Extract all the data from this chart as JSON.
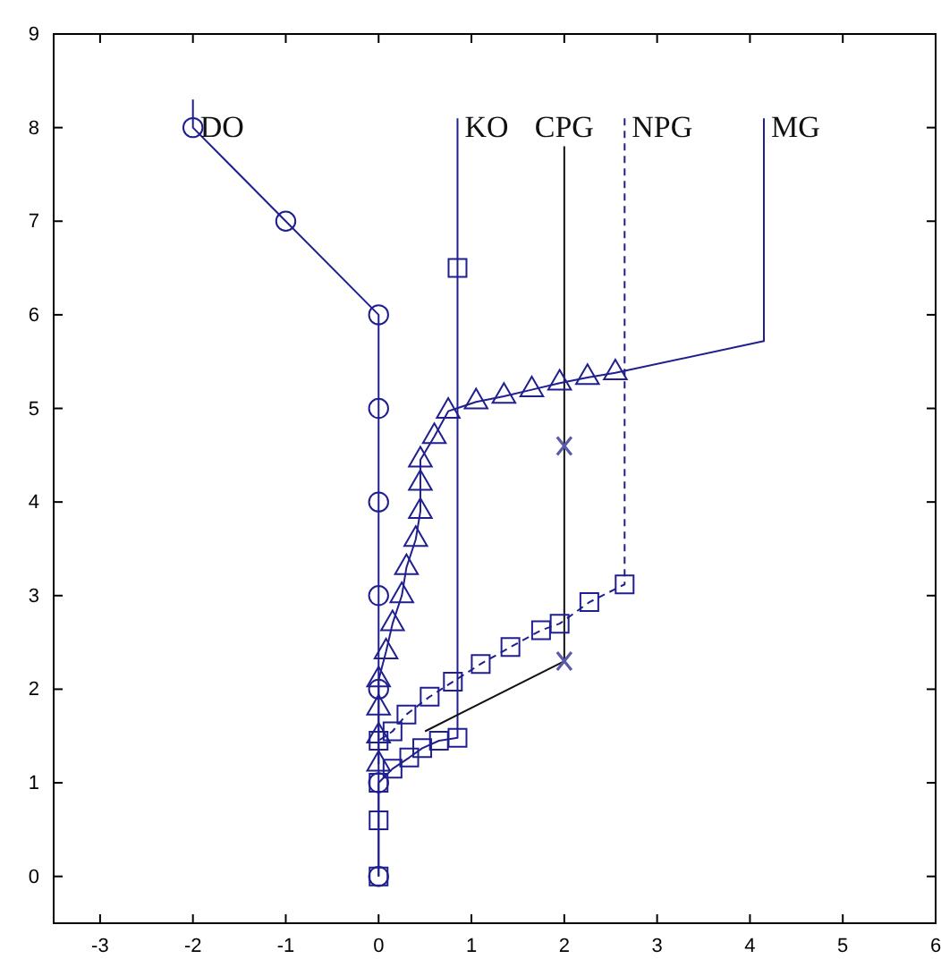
{
  "chart_data": {
    "type": "line",
    "xlim": [
      -3.5,
      6
    ],
    "xticks": [
      -3,
      -2,
      -1,
      0,
      1,
      2,
      3,
      4,
      5,
      6
    ],
    "ylim": [
      -0.5,
      9
    ],
    "yticks": [
      0,
      1,
      2,
      3,
      4,
      5,
      6,
      7,
      8,
      9
    ],
    "grid": false,
    "legend": false,
    "series": [
      {
        "name": "DO",
        "color": "#1f1f8f",
        "marker": "none",
        "x": [
          -2,
          -2,
          -1,
          0,
          0,
          0,
          0,
          0,
          0,
          0
        ],
        "values": [
          8.3,
          8,
          7,
          6,
          5,
          4,
          3,
          2,
          1,
          0
        ]
      },
      {
        "color": "#1f1f8f",
        "type": "scatter",
        "marker": "circle",
        "x": [
          -2,
          -1,
          0,
          0,
          0,
          0,
          0,
          0,
          0
        ],
        "values": [
          8,
          7,
          6,
          5,
          4,
          3,
          2,
          1,
          0
        ]
      },
      {
        "name": "KO",
        "color": "#1f1f8f",
        "marker": "none",
        "x": [
          0.85,
          0.85,
          0.85,
          0.65,
          0.47,
          0.33,
          0.15,
          0,
          0,
          0
        ],
        "values": [
          8.1,
          6.5,
          1.48,
          1.45,
          1.37,
          1.27,
          1.15,
          1,
          0.6,
          0
        ]
      },
      {
        "color": "#1f1f8f",
        "type": "scatter",
        "marker": "square",
        "x": [
          0.85,
          0.85,
          0.65,
          0.47,
          0.33,
          0.15,
          0,
          0,
          0
        ],
        "values": [
          6.5,
          1.48,
          1.45,
          1.37,
          1.27,
          1.15,
          1,
          0.6,
          0
        ]
      },
      {
        "name": "CPG",
        "color": "#111111",
        "marker": "none",
        "x": [
          2,
          2,
          2,
          0.5
        ],
        "values": [
          7.8,
          4.6,
          2.3,
          1.55
        ]
      },
      {
        "color": "#5a5aa8",
        "type": "scatter",
        "marker": "cross",
        "x": [
          2,
          2
        ],
        "values": [
          4.6,
          2.3
        ]
      },
      {
        "name": "NPG",
        "color": "#1f1f8f",
        "marker": "none",
        "line_style": "dashed",
        "x": [
          2.65,
          2.65,
          2.27,
          1.95,
          1.75,
          1.42,
          1.1,
          0.8,
          0.55,
          0.3,
          0.15,
          0
        ],
        "values": [
          8.1,
          3.12,
          2.93,
          2.7,
          2.63,
          2.45,
          2.27,
          2.08,
          1.92,
          1.73,
          1.55,
          1.45
        ]
      },
      {
        "color": "#1f1f8f",
        "type": "scatter",
        "marker": "square",
        "x": [
          2.65,
          2.27,
          1.95,
          1.75,
          1.42,
          1.1,
          0.8,
          0.55,
          0.3,
          0.15,
          0
        ],
        "values": [
          3.12,
          2.93,
          2.7,
          2.63,
          2.45,
          2.27,
          2.08,
          1.92,
          1.73,
          1.55,
          1.45
        ]
      },
      {
        "name": "MG",
        "color": "#1f1f8f",
        "marker": "none",
        "x": [
          4.15,
          4.15,
          2.55,
          2.25,
          1.95,
          1.65,
          1.35,
          1.05,
          0.75,
          0.6,
          0.45,
          0.45,
          0.45,
          0.4,
          0.3,
          0.25,
          0.15,
          0.08,
          0,
          0,
          0,
          0
        ],
        "values": [
          8.1,
          5.72,
          5.38,
          5.33,
          5.27,
          5.2,
          5.13,
          5.07,
          4.97,
          4.7,
          4.45,
          4.2,
          3.9,
          3.6,
          3.3,
          3.0,
          2.7,
          2.4,
          2.1,
          1.8,
          1.5,
          1.2
        ]
      },
      {
        "color": "#1f1f8f",
        "type": "scatter",
        "marker": "triangle",
        "x": [
          2.55,
          2.25,
          1.95,
          1.65,
          1.35,
          1.05,
          0.75,
          0.6,
          0.45,
          0.45,
          0.45,
          0.4,
          0.3,
          0.25,
          0.15,
          0.08,
          0,
          0,
          0,
          0
        ],
        "values": [
          5.38,
          5.33,
          5.27,
          5.2,
          5.13,
          5.07,
          4.97,
          4.7,
          4.45,
          4.2,
          3.9,
          3.6,
          3.3,
          3.0,
          2.7,
          2.4,
          2.1,
          1.8,
          1.5,
          1.2
        ]
      }
    ]
  }
}
